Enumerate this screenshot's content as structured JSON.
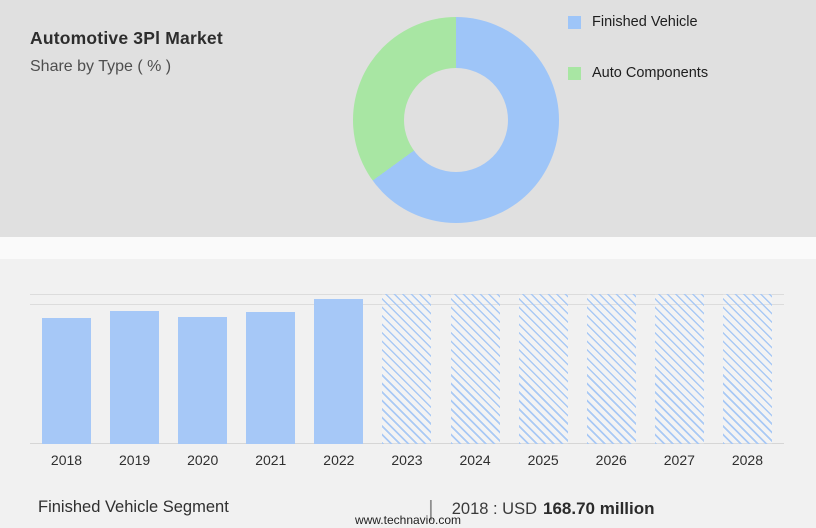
{
  "header": {
    "title": "Automotive 3Pl Market",
    "subtitle": "Share by Type ( % )"
  },
  "legend": {
    "items": [
      {
        "label": "Finished Vehicle",
        "color": "#9ec5f8"
      },
      {
        "label": "Auto Components",
        "color": "#a8e6a3"
      }
    ]
  },
  "chart_data": [
    {
      "type": "pie",
      "title": "Automotive 3Pl Market — Share by Type ( % )",
      "labels": [
        "Finished Vehicle",
        "Auto Components"
      ],
      "values": [
        65,
        35
      ],
      "colors": [
        "#9ec5f8",
        "#a8e6a3"
      ],
      "donut": true,
      "legend_position": "right"
    },
    {
      "type": "bar",
      "title": "Finished Vehicle Segment (2018-2028)",
      "categories": [
        "2018",
        "2019",
        "2020",
        "2021",
        "2022",
        "2023",
        "2024",
        "2025",
        "2026",
        "2027",
        "2028"
      ],
      "values": [
        84,
        89,
        85,
        88,
        97,
        100,
        100,
        100,
        100,
        100,
        100
      ],
      "unit": "relative bar height % (no y-axis labels shown in chart)",
      "forecast_categories": [
        "2023",
        "2024",
        "2025",
        "2026",
        "2027",
        "2028"
      ],
      "bar_color": "#a6c8f7",
      "forecast_style": "diagonal-hatch",
      "known_value": {
        "year": "2018",
        "value": "USD 168.70 million"
      },
      "xlabel": "",
      "ylabel": "",
      "grid": "horizontal lines at top and baseline"
    }
  ],
  "footer": {
    "segment_label": "Finished Vehicle Segment",
    "divider": "|",
    "stat_prefix": "2018 : USD",
    "stat_value": "168.70 million",
    "website": "www.technavio.com"
  }
}
